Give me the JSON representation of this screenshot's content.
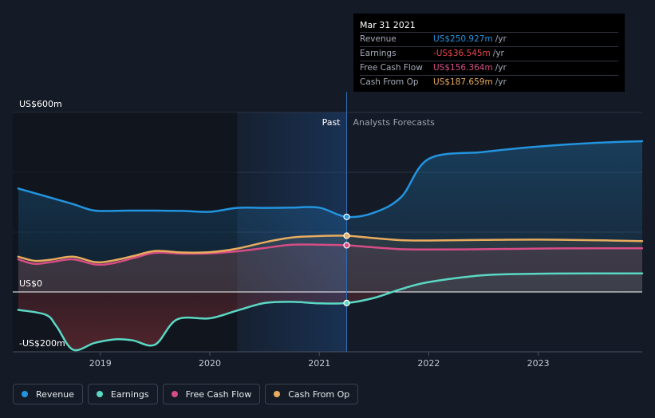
{
  "tooltip": {
    "date": "Mar 31 2021",
    "rows": [
      {
        "label": "Revenue",
        "value": "US$250.927m",
        "unit": "/yr",
        "color": "#2394df"
      },
      {
        "label": "Earnings",
        "value": "-US$36.545m",
        "unit": "/yr",
        "color": "#e8484d"
      },
      {
        "label": "Free Cash Flow",
        "value": "US$156.364m",
        "unit": "/yr",
        "color": "#d64d85"
      },
      {
        "label": "Cash From Op",
        "value": "US$187.659m",
        "unit": "/yr",
        "color": "#e8ac5e"
      }
    ]
  },
  "chart_data": {
    "type": "line",
    "ylabels": [
      {
        "text": "US$600m",
        "value": 600
      },
      {
        "text": "US$0",
        "value": 0
      },
      {
        "text": "-US$200m",
        "value": -200
      }
    ],
    "ylim": [
      -200,
      600
    ],
    "xlim": [
      2018.2,
      2023.95
    ],
    "x_ticks": [
      {
        "label": "2019",
        "value": 2019
      },
      {
        "label": "2020",
        "value": 2020
      },
      {
        "label": "2021",
        "value": 2021
      },
      {
        "label": "2022",
        "value": 2022
      },
      {
        "label": "2023",
        "value": 2023
      }
    ],
    "period_labels": {
      "past": "Past",
      "forecast": "Analysts Forecasts"
    },
    "past_end_x": 2021.25,
    "past_shade_start_x": 2020.25,
    "grid": true,
    "series": [
      {
        "name": "Revenue",
        "color": "#2394df",
        "points": [
          [
            2018.25,
            346
          ],
          [
            2018.5,
            320
          ],
          [
            2018.75,
            294
          ],
          [
            2018.95,
            272
          ],
          [
            2019.25,
            272
          ],
          [
            2019.5,
            272
          ],
          [
            2019.75,
            271
          ],
          [
            2020.0,
            268
          ],
          [
            2020.25,
            281
          ],
          [
            2020.5,
            281
          ],
          [
            2020.75,
            282
          ],
          [
            2021.0,
            282
          ],
          [
            2021.25,
            251
          ],
          [
            2021.5,
            265
          ],
          [
            2021.75,
            318
          ],
          [
            2022.0,
            445
          ],
          [
            2022.5,
            468
          ],
          [
            2023.0,
            486
          ],
          [
            2023.5,
            498
          ],
          [
            2023.95,
            504
          ]
        ]
      },
      {
        "name": "Free Cash Flow",
        "color": "#d64d85",
        "points": [
          [
            2018.25,
            109
          ],
          [
            2018.4,
            94
          ],
          [
            2018.55,
            100
          ],
          [
            2018.75,
            109
          ],
          [
            2018.95,
            92
          ],
          [
            2019.1,
            95
          ],
          [
            2019.3,
            113
          ],
          [
            2019.5,
            131
          ],
          [
            2019.75,
            128
          ],
          [
            2020.0,
            129
          ],
          [
            2020.25,
            136
          ],
          [
            2020.5,
            147
          ],
          [
            2020.75,
            158
          ],
          [
            2021.0,
            158
          ],
          [
            2021.25,
            156
          ],
          [
            2021.5,
            149
          ],
          [
            2021.75,
            143
          ],
          [
            2022.0,
            142
          ],
          [
            2022.5,
            143
          ],
          [
            2023.0,
            145
          ],
          [
            2023.5,
            146
          ],
          [
            2023.95,
            146
          ]
        ]
      },
      {
        "name": "Cash From Op",
        "color": "#e8ac5e",
        "points": [
          [
            2018.25,
            118
          ],
          [
            2018.4,
            104
          ],
          [
            2018.55,
            108
          ],
          [
            2018.75,
            118
          ],
          [
            2018.95,
            100
          ],
          [
            2019.1,
            104
          ],
          [
            2019.3,
            120
          ],
          [
            2019.5,
            137
          ],
          [
            2019.75,
            132
          ],
          [
            2020.0,
            133
          ],
          [
            2020.25,
            145
          ],
          [
            2020.5,
            166
          ],
          [
            2020.75,
            182
          ],
          [
            2021.0,
            187
          ],
          [
            2021.25,
            188
          ],
          [
            2021.5,
            180
          ],
          [
            2021.75,
            173
          ],
          [
            2022.0,
            172
          ],
          [
            2022.5,
            174
          ],
          [
            2023.0,
            175
          ],
          [
            2023.5,
            173
          ],
          [
            2023.95,
            170
          ]
        ]
      },
      {
        "name": "Earnings",
        "color": "#5ad8c4",
        "points": [
          [
            2018.25,
            -60
          ],
          [
            2018.5,
            -76
          ],
          [
            2018.6,
            -115
          ],
          [
            2018.75,
            -193
          ],
          [
            2018.95,
            -170
          ],
          [
            2019.15,
            -158
          ],
          [
            2019.3,
            -162
          ],
          [
            2019.5,
            -176
          ],
          [
            2019.7,
            -92
          ],
          [
            2020.0,
            -88
          ],
          [
            2020.25,
            -62
          ],
          [
            2020.5,
            -37
          ],
          [
            2020.75,
            -33
          ],
          [
            2021.0,
            -38
          ],
          [
            2021.25,
            -37
          ],
          [
            2021.5,
            -20
          ],
          [
            2021.75,
            10
          ],
          [
            2022.0,
            33
          ],
          [
            2022.5,
            56
          ],
          [
            2023.0,
            61
          ],
          [
            2023.5,
            62
          ],
          [
            2023.95,
            62
          ]
        ]
      }
    ]
  },
  "legend": [
    {
      "label": "Revenue",
      "color": "#2394df"
    },
    {
      "label": "Earnings",
      "color": "#5ad8c4"
    },
    {
      "label": "Free Cash Flow",
      "color": "#d64d85"
    },
    {
      "label": "Cash From Op",
      "color": "#e8ac5e"
    }
  ]
}
